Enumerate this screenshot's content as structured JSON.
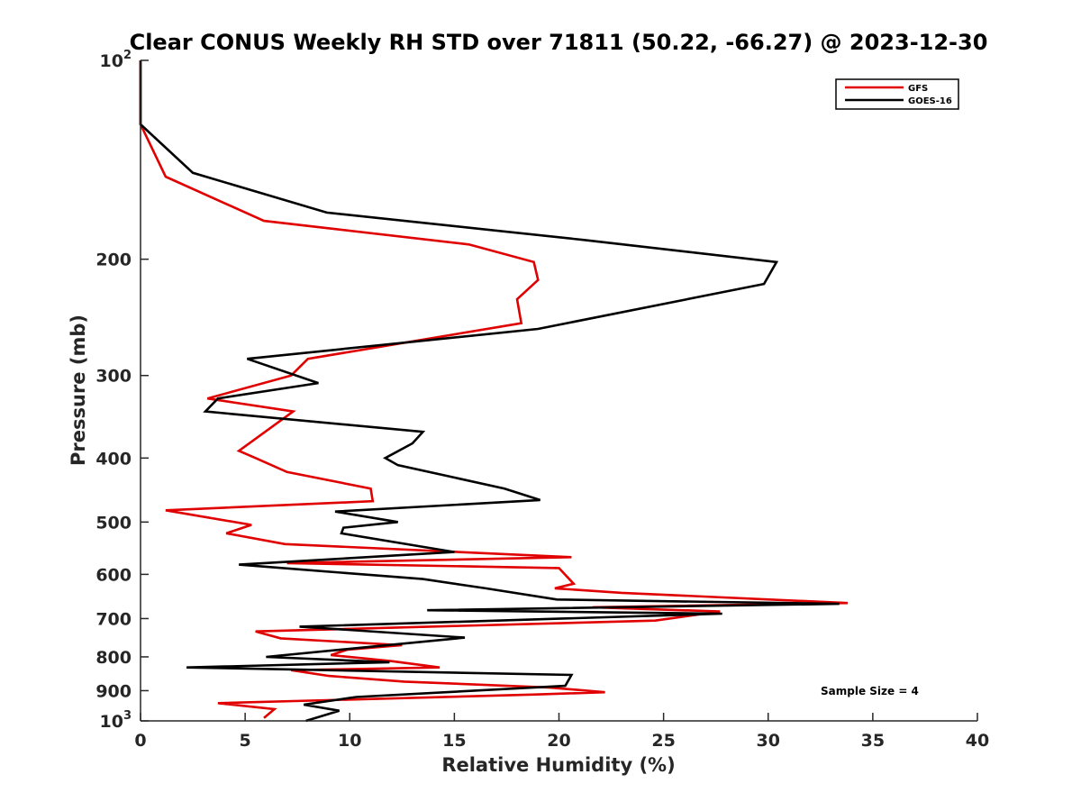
{
  "chart_data": {
    "type": "line",
    "title": "Clear CONUS Weekly RH STD over 71811 (50.22, -66.27) @ 2023-12-30",
    "xlabel": "Relative Humidity (%)",
    "ylabel": "Pressure (mb)",
    "xlim": [
      0,
      40
    ],
    "ylim": [
      100,
      1000
    ],
    "y_scale": "log",
    "y_reversed": true,
    "x_ticks": [
      "0",
      "5",
      "10",
      "15",
      "20",
      "25",
      "30",
      "35",
      "40"
    ],
    "y_ticks": [
      {
        "value": 100,
        "base": "10",
        "exp": "2"
      },
      {
        "value": 200,
        "label": "200"
      },
      {
        "value": 300,
        "label": "300"
      },
      {
        "value": 400,
        "label": "400"
      },
      {
        "value": 500,
        "label": "500"
      },
      {
        "value": 600,
        "label": "600"
      },
      {
        "value": 700,
        "label": "700"
      },
      {
        "value": 800,
        "label": "800"
      },
      {
        "value": 900,
        "label": "900"
      },
      {
        "value": 1000,
        "base": "10",
        "exp": "3"
      }
    ],
    "grid": false,
    "legend_position": "top-right",
    "annotation": "Sample Size = 4",
    "series": [
      {
        "name": "GFS",
        "color": "#e00000",
        "points": [
          [
            0.0,
            100
          ],
          [
            0.0,
            125
          ],
          [
            1.2,
            150
          ],
          [
            5.9,
            175
          ],
          [
            15.7,
            190
          ],
          [
            18.8,
            202
          ],
          [
            19.0,
            215
          ],
          [
            18.0,
            230
          ],
          [
            18.2,
            250
          ],
          [
            8.0,
            283
          ],
          [
            7.2,
            300
          ],
          [
            3.2,
            325
          ],
          [
            7.3,
            340
          ],
          [
            4.7,
            390
          ],
          [
            5.5,
            400
          ],
          [
            7.0,
            420
          ],
          [
            11.0,
            445
          ],
          [
            11.1,
            465
          ],
          [
            1.2,
            480
          ],
          [
            5.3,
            505
          ],
          [
            4.1,
            520
          ],
          [
            6.9,
            540
          ],
          [
            20.6,
            565
          ],
          [
            7.0,
            577
          ],
          [
            20.0,
            587
          ],
          [
            20.7,
            620
          ],
          [
            19.8,
            630
          ],
          [
            23.0,
            640
          ],
          [
            33.8,
            663
          ],
          [
            21.6,
            673
          ],
          [
            27.7,
            683
          ],
          [
            24.6,
            705
          ],
          [
            5.5,
            732
          ],
          [
            6.7,
            750
          ],
          [
            12.5,
            768
          ],
          [
            9.9,
            780
          ],
          [
            9.1,
            795
          ],
          [
            12.0,
            812
          ],
          [
            14.3,
            830
          ],
          [
            7.2,
            838
          ],
          [
            9.0,
            855
          ],
          [
            12.6,
            872
          ],
          [
            19.5,
            890
          ],
          [
            22.2,
            905
          ],
          [
            18.9,
            912
          ],
          [
            3.7,
            940
          ],
          [
            6.4,
            960
          ],
          [
            5.9,
            990
          ]
        ]
      },
      {
        "name": "GOES-16",
        "color": "#000000",
        "points": [
          [
            0.0,
            100
          ],
          [
            0.0,
            125
          ],
          [
            2.5,
            148
          ],
          [
            8.9,
            170
          ],
          [
            21.2,
            187
          ],
          [
            30.4,
            202
          ],
          [
            29.8,
            218
          ],
          [
            19.0,
            255
          ],
          [
            5.1,
            283
          ],
          [
            8.5,
            308
          ],
          [
            3.7,
            325
          ],
          [
            3.1,
            340
          ],
          [
            13.5,
            365
          ],
          [
            13.0,
            380
          ],
          [
            11.7,
            400
          ],
          [
            12.3,
            410
          ],
          [
            17.4,
            445
          ],
          [
            19.1,
            463
          ],
          [
            9.3,
            482
          ],
          [
            12.3,
            500
          ],
          [
            9.7,
            510
          ],
          [
            9.6,
            520
          ],
          [
            15.0,
            555
          ],
          [
            4.7,
            580
          ],
          [
            13.5,
            610
          ],
          [
            16.5,
            630
          ],
          [
            19.9,
            655
          ],
          [
            33.4,
            665
          ],
          [
            13.7,
            680
          ],
          [
            27.8,
            688
          ],
          [
            7.6,
            720
          ],
          [
            15.5,
            748
          ],
          [
            6.0,
            800
          ],
          [
            11.9,
            815
          ],
          [
            2.2,
            830
          ],
          [
            20.6,
            852
          ],
          [
            20.3,
            885
          ],
          [
            10.3,
            920
          ],
          [
            7.8,
            945
          ],
          [
            9.5,
            965
          ],
          [
            7.9,
            1000
          ]
        ]
      }
    ]
  }
}
